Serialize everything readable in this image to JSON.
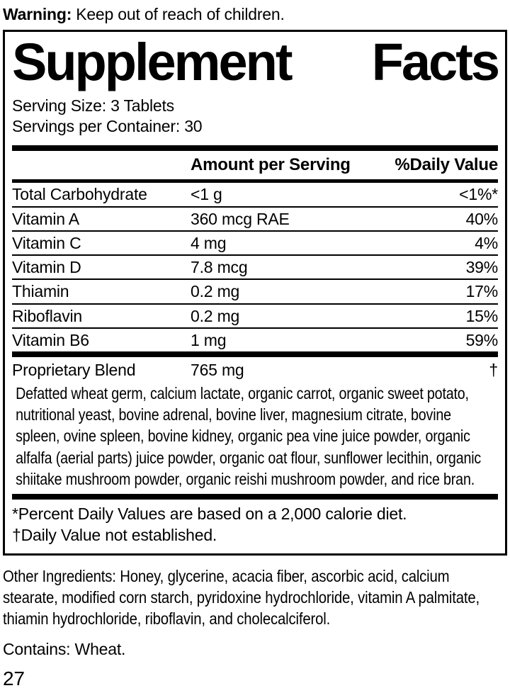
{
  "warning": {
    "label": "Warning:",
    "text": "Keep out of reach of children."
  },
  "panel": {
    "title": {
      "left": "Supplement",
      "right": "Facts"
    },
    "serving_size": "Serving Size: 3 Tablets",
    "servings_per_container": "Servings per Container: 30",
    "columns": {
      "amount": "Amount per Serving",
      "daily_value": "%Daily Value"
    },
    "rows": [
      {
        "name": "Total Carbohydrate",
        "amount": "<1 g",
        "dv": "<1%*"
      },
      {
        "name": "Vitamin A",
        "amount": "360 mcg RAE",
        "dv": "40%"
      },
      {
        "name": "Vitamin C",
        "amount": "4 mg",
        "dv": "4%"
      },
      {
        "name": "Vitamin D",
        "amount": "7.8 mcg",
        "dv": "39%"
      },
      {
        "name": "Thiamin",
        "amount": "0.2 mg",
        "dv": "17%"
      },
      {
        "name": "Riboflavin",
        "amount": "0.2 mg",
        "dv": "15%"
      },
      {
        "name": "Vitamin B6",
        "amount": "1 mg",
        "dv": "59%"
      }
    ],
    "proprietary": {
      "name": "Proprietary Blend",
      "amount": "765 mg",
      "dv": "†",
      "description": "Defatted wheat germ, calcium lactate, organic carrot, organic sweet potato, nutritional yeast, bovine adrenal, bovine liver, magnesium citrate, bovine spleen, ovine spleen, bovine kidney, organic pea vine juice powder, organic alfalfa (aerial parts) juice powder, organic oat flour, sunflower lecithin, organic shiitake mushroom powder, organic reishi mushroom powder, and rice bran."
    },
    "footnotes": [
      "*Percent Daily Values are based on a 2,000 calorie diet.",
      "†Daily Value not established."
    ]
  },
  "other_ingredients": "Other Ingredients: Honey, glycerine, acacia fiber, ascorbic acid, calcium stearate,  modified corn starch, pyridoxine hydrochloride, vitamin A palmitate, thiamin hydrochloride, riboflavin, and cholecalciferol.",
  "contains": "Contains: Wheat.",
  "page_number": "27",
  "colors": {
    "ink": "#000000",
    "background": "#ffffff"
  }
}
